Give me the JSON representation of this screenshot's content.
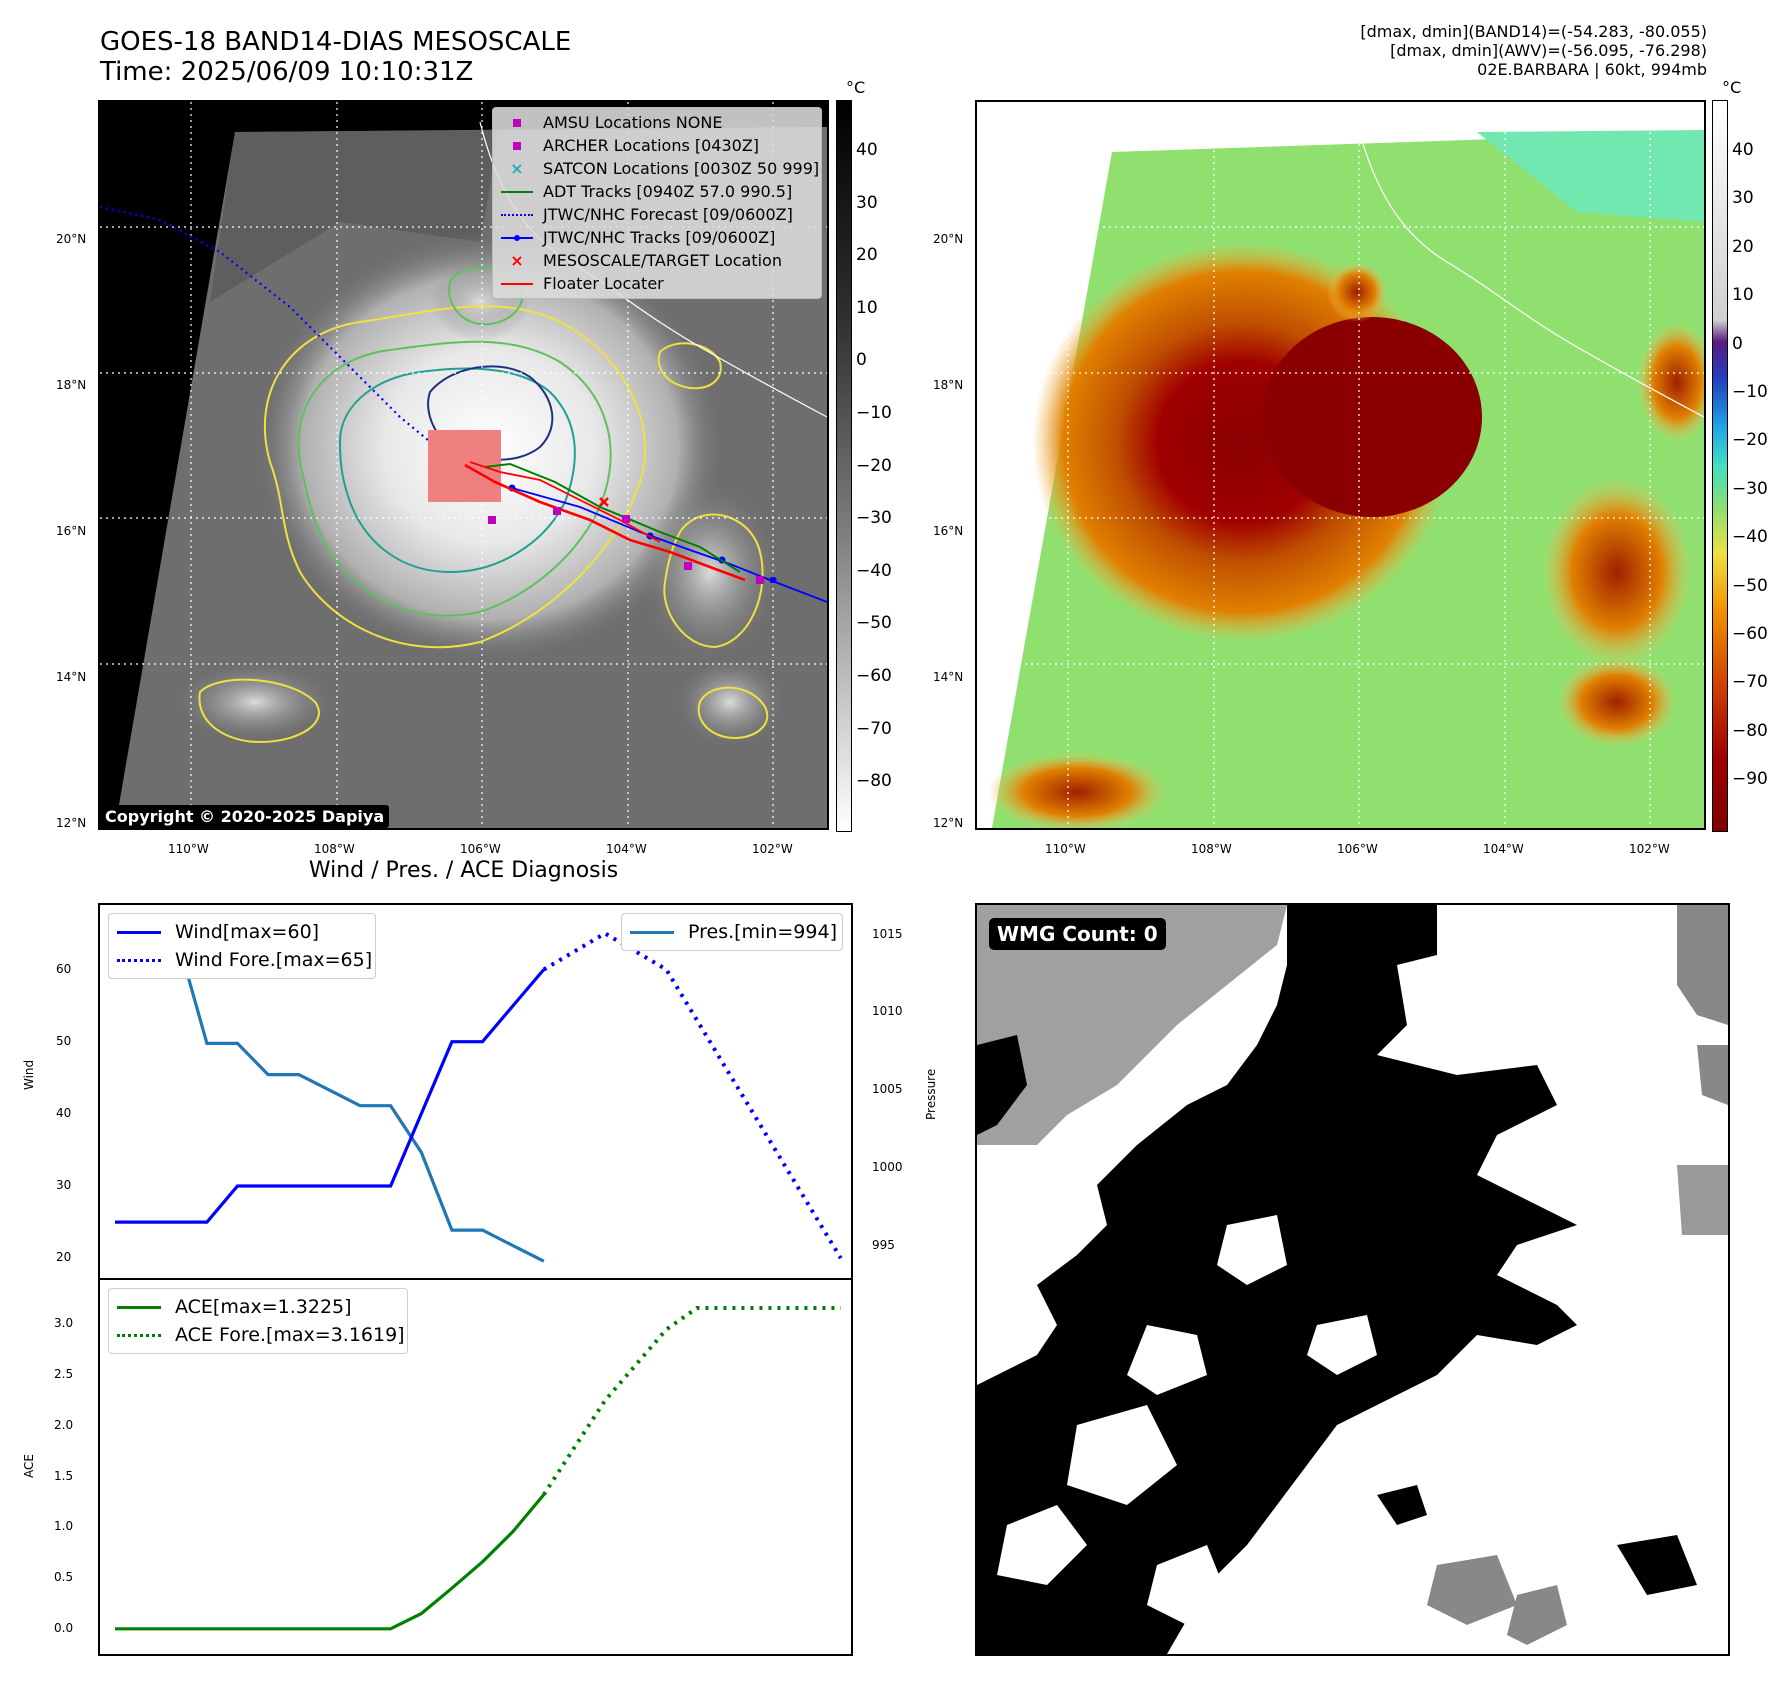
{
  "header": {
    "title_line1": "GOES-18 BAND14-DIAS MESOSCALE",
    "title_line2": "Time: 2025/06/09 10:10:31Z",
    "info_line1": "[dmax, dmin](BAND14)=(-54.283, -80.055)",
    "info_line2": "[dmax, dmin](AWV)=(-56.095, -76.298)",
    "info_line3": "02E.BARBARA | 60kt, 994mb"
  },
  "map_axes": {
    "lat_labels": [
      "20°N",
      "18°N",
      "16°N",
      "14°N",
      "12°N"
    ],
    "lon_labels": [
      "110°W",
      "108°W",
      "106°W",
      "104°W",
      "102°W"
    ]
  },
  "ir_colorbar": {
    "unit": "°C",
    "ticks": [
      "40",
      "30",
      "20",
      "10",
      "0",
      "−10",
      "−20",
      "−30",
      "−40",
      "−50",
      "−60",
      "−70",
      "−80"
    ]
  },
  "awv_colorbar": {
    "unit": "°C",
    "ticks": [
      "40",
      "30",
      "20",
      "10",
      "0",
      "−10",
      "−20",
      "−30",
      "−40",
      "−50",
      "−60",
      "−70",
      "−80",
      "−90"
    ]
  },
  "map_legend": {
    "items": [
      {
        "label": "AMSU Locations NONE",
        "symbol": "square",
        "color": "#c000c0"
      },
      {
        "label": "ARCHER Locations [0430Z]",
        "symbol": "square",
        "color": "#c000c0"
      },
      {
        "label": "SATCON Locations [0030Z 50 999]",
        "symbol": "x",
        "color": "#20b0b0"
      },
      {
        "label": "ADT Tracks [0940Z 57.0 990.5]",
        "symbol": "line",
        "color": "#008000"
      },
      {
        "label": "JTWC/NHC Forecast [09/0600Z]",
        "symbol": "dotted",
        "color": "#0000ff"
      },
      {
        "label": "JTWC/NHC Tracks [09/0600Z]",
        "symbol": "line-dot",
        "color": "#0000ff"
      },
      {
        "label": "MESOSCALE/TARGET Location",
        "symbol": "x",
        "color": "#ff0000"
      },
      {
        "label": "Floater Locater",
        "symbol": "line",
        "color": "#ff0000"
      }
    ]
  },
  "copyright": "Copyright © 2020-2025 Dapiya",
  "diagnosis": {
    "title": "Wind / Pres. / ACE Diagnosis",
    "wind_ylabel": "Wind",
    "pres_ylabel": "Pressure",
    "ace_ylabel": "ACE",
    "wind_legend": [
      "Wind[max=60]",
      "Wind Fore.[max=65]"
    ],
    "pres_legend": [
      "Pres.[min=994]"
    ],
    "ace_legend": [
      "ACE[max=1.3225]",
      "ACE Fore.[max=3.1619]"
    ],
    "wind_ticks": [
      "60",
      "50",
      "40",
      "30",
      "20"
    ],
    "pres_ticks": [
      "1015",
      "1010",
      "1005",
      "1000",
      "995"
    ],
    "ace_ticks": [
      "3.0",
      "2.5",
      "2.0",
      "1.5",
      "1.0",
      "0.5",
      "0.0"
    ]
  },
  "wmg": {
    "badge": "WMG Count: 0"
  },
  "chart_data": [
    {
      "type": "line",
      "name": "wind",
      "x": [
        0,
        1,
        2,
        3,
        4,
        5,
        6,
        7,
        8,
        9,
        10,
        11,
        12,
        13,
        14
      ],
      "series": [
        {
          "name": "Wind[max=60]",
          "color": "#0000ff",
          "style": "solid",
          "x": [
            0,
            1,
            2,
            3,
            4,
            5,
            6,
            7,
            8,
            9,
            10,
            11,
            12,
            13,
            14
          ],
          "values": [
            25,
            25,
            25,
            25,
            30,
            30,
            30,
            30,
            30,
            30,
            40,
            50,
            50,
            55,
            60
          ]
        },
        {
          "name": "Wind Fore.[max=65]",
          "color": "#0000ff",
          "style": "dotted",
          "x": [
            14,
            16,
            18,
            23.7
          ],
          "values": [
            60,
            65,
            60,
            20
          ]
        }
      ],
      "ylim": [
        18.5,
        67
      ]
    },
    {
      "type": "line",
      "name": "pressure",
      "series": [
        {
          "name": "Pres.[min=994]",
          "color": "#1f77b4",
          "style": "solid",
          "x": [
            0,
            1,
            2,
            3,
            4,
            5,
            6,
            7,
            8,
            9,
            10,
            11,
            12,
            13,
            14
          ],
          "values": [
            1015,
            1015,
            1015,
            1008,
            1008,
            1006,
            1006,
            1005,
            1004,
            1004,
            1001,
            996,
            996,
            995,
            994
          ]
        }
      ],
      "ylim": [
        993.5,
        1016
      ]
    },
    {
      "type": "line",
      "name": "ace",
      "series": [
        {
          "name": "ACE[max=1.3225]",
          "color": "#008000",
          "style": "solid",
          "x": [
            0,
            1,
            2,
            3,
            4,
            5,
            6,
            7,
            8,
            9,
            10,
            11,
            12,
            13,
            14
          ],
          "values": [
            0,
            0,
            0,
            0,
            0,
            0,
            0,
            0,
            0,
            0,
            0.15,
            0.4,
            0.66,
            0.96,
            1.3225
          ]
        },
        {
          "name": "ACE Fore.[max=3.1619]",
          "color": "#008000",
          "style": "dotted",
          "x": [
            14,
            16,
            18,
            19,
            20,
            21,
            22,
            23.7
          ],
          "values": [
            1.3225,
            2.25,
            2.95,
            3.1619,
            3.1619,
            3.1619,
            3.1619,
            3.1619
          ]
        }
      ],
      "ylim": [
        -0.15,
        3.3
      ]
    }
  ]
}
